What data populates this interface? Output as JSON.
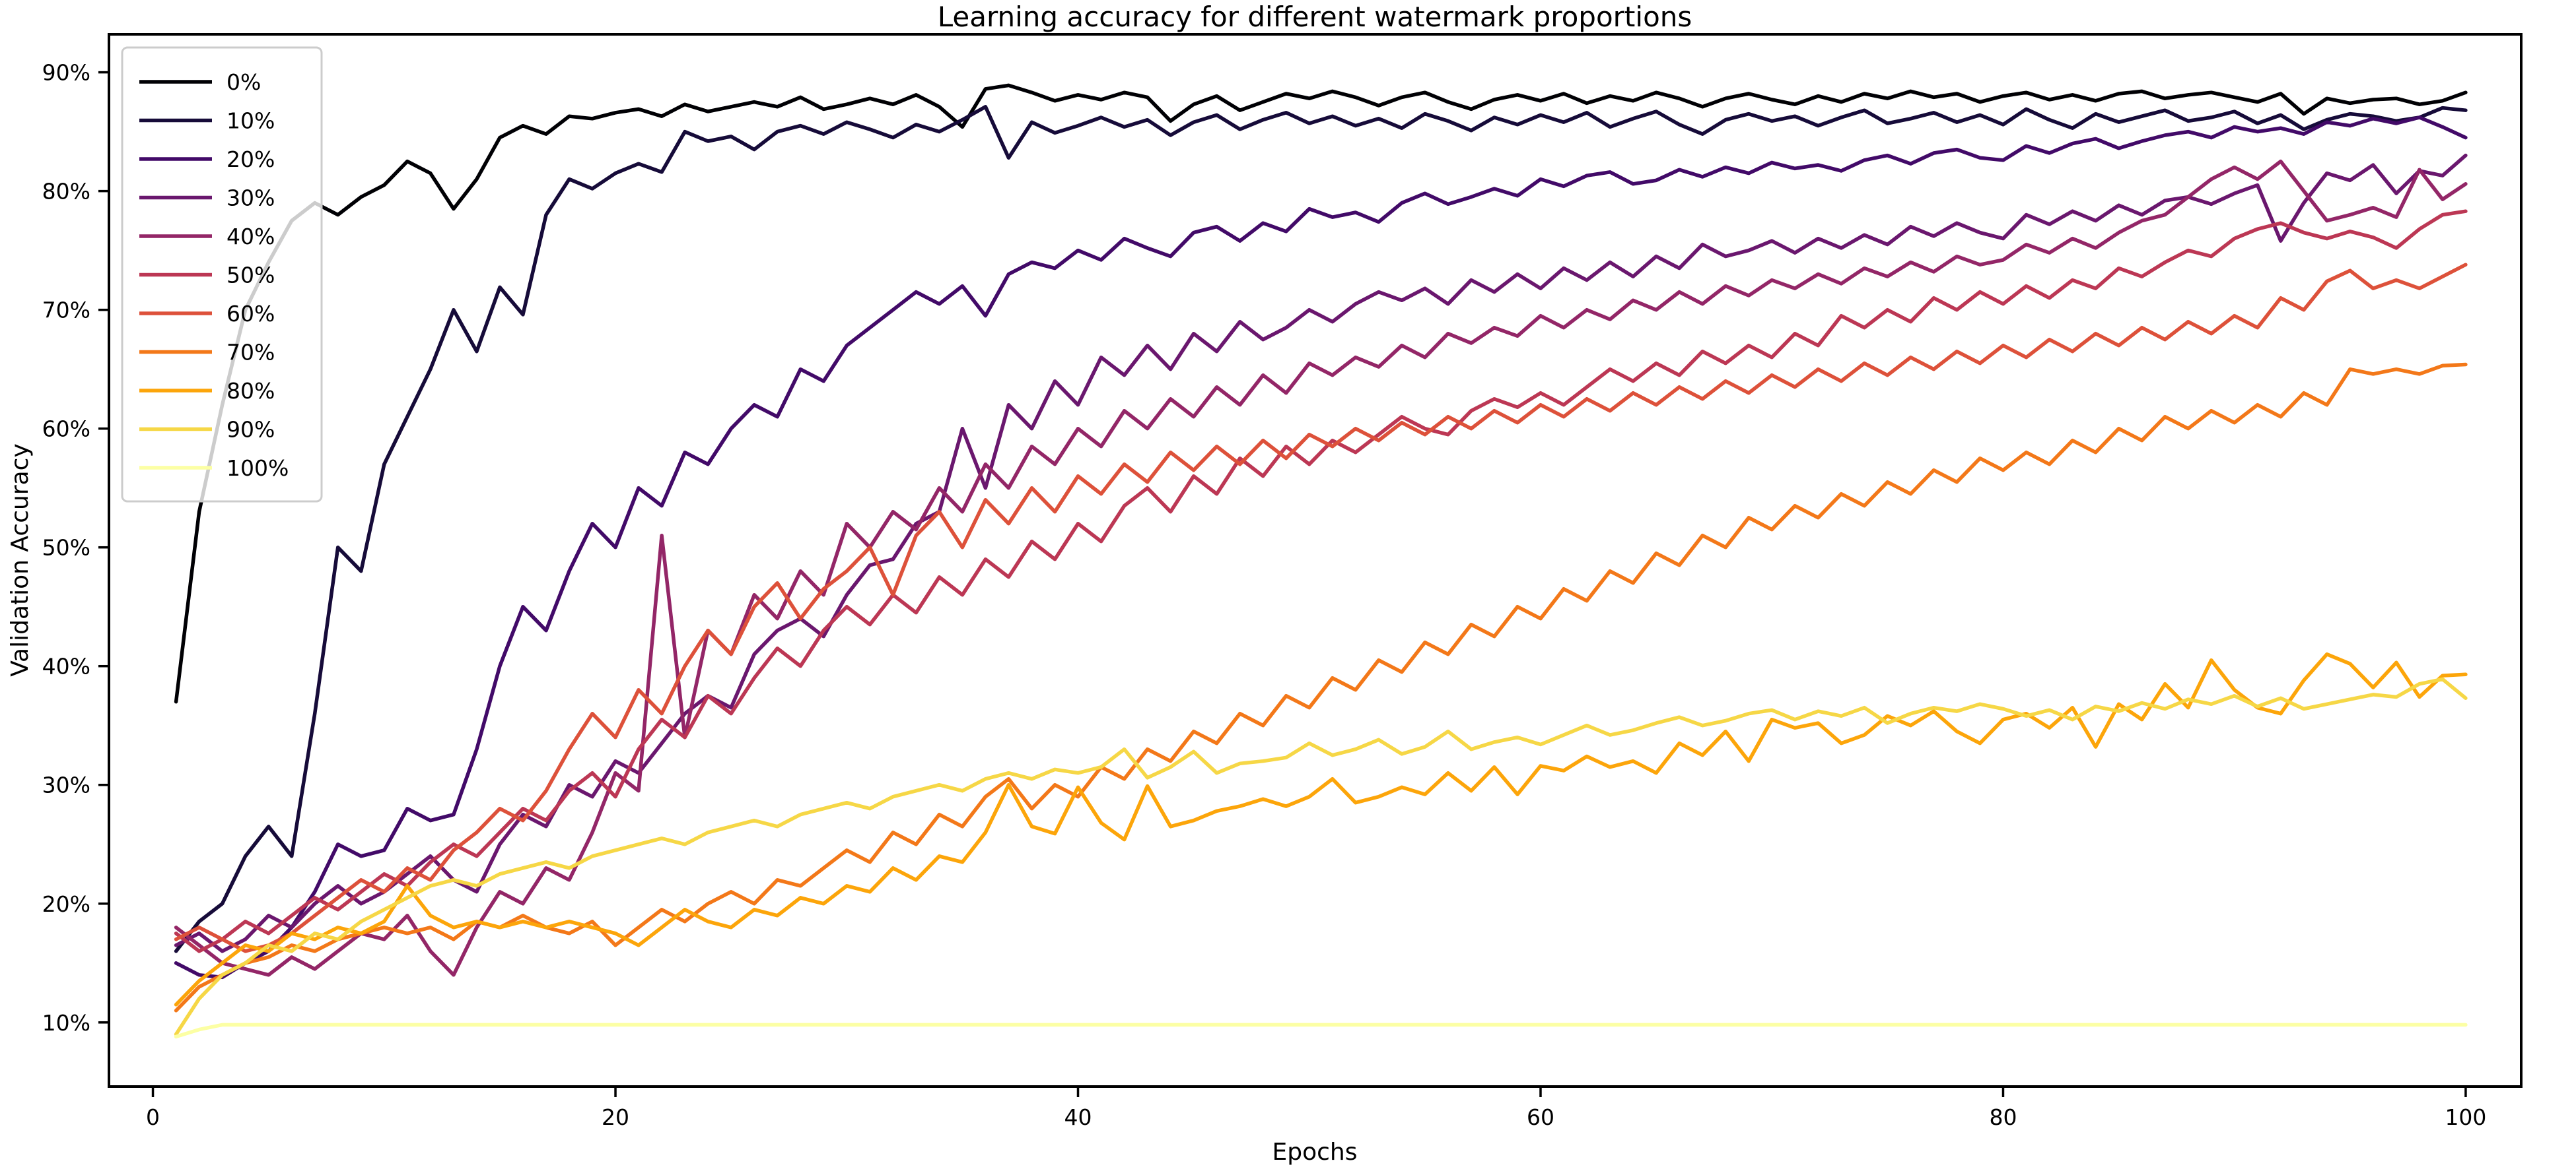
{
  "figure": {
    "title": "Learning accuracy for different watermark proportions",
    "background_color": "#ffffff",
    "axis_color": "#000000",
    "legend_border_color": "#cccccc"
  },
  "chart_data": {
    "type": "line",
    "title": "Learning accuracy for different watermark proportions",
    "xlabel": "Epochs",
    "ylabel": "Validation Accuracy",
    "xlim": [
      -1.9,
      102.4
    ],
    "ylim": [
      4.6,
      93.2
    ],
    "x_ticks": [
      0,
      20,
      40,
      60,
      80,
      100
    ],
    "y_ticks": [
      10,
      20,
      30,
      40,
      50,
      60,
      70,
      80,
      90
    ],
    "y_tick_labels": [
      "10%",
      "20%",
      "30%",
      "40%",
      "50%",
      "60%",
      "70%",
      "80%",
      "90%"
    ],
    "grid": false,
    "legend_position": "upper left",
    "x": [
      1,
      2,
      3,
      4,
      5,
      6,
      7,
      8,
      9,
      10,
      11,
      12,
      13,
      14,
      15,
      16,
      17,
      18,
      19,
      20,
      21,
      22,
      23,
      24,
      25,
      26,
      27,
      28,
      29,
      30,
      31,
      32,
      33,
      34,
      35,
      36,
      37,
      38,
      39,
      40,
      41,
      42,
      43,
      44,
      45,
      46,
      47,
      48,
      49,
      50,
      51,
      52,
      53,
      54,
      55,
      56,
      57,
      58,
      59,
      60,
      61,
      62,
      63,
      64,
      65,
      66,
      67,
      68,
      69,
      70,
      71,
      72,
      73,
      74,
      75,
      76,
      77,
      78,
      79,
      80,
      81,
      82,
      83,
      84,
      85,
      86,
      87,
      88,
      89,
      90,
      91,
      92,
      93,
      94,
      95,
      96,
      97,
      98,
      99,
      100
    ],
    "series": [
      {
        "name": "0%",
        "color": "#000004",
        "values": [
          37,
          53,
          62,
          70,
          74,
          77.5,
          79,
          78,
          79.5,
          80.5,
          82.5,
          81.5,
          78.5,
          81,
          84.5,
          85.5,
          84.8,
          86.3,
          86.1,
          86.6,
          86.9,
          86.3,
          87.3,
          86.7,
          87.1,
          87.5,
          87.1,
          87.9,
          86.9,
          87.3,
          87.8,
          87.3,
          88.1,
          87.1,
          85.4,
          88.6,
          88.9,
          88.3,
          87.6,
          88.1,
          87.7,
          88.3,
          87.9,
          85.9,
          87.3,
          88,
          86.8,
          87.5,
          88.2,
          87.8,
          88.4,
          87.9,
          87.2,
          87.9,
          88.3,
          87.5,
          86.9,
          87.7,
          88.1,
          87.6,
          88.2,
          87.4,
          88,
          87.6,
          88.3,
          87.8,
          87.1,
          87.8,
          88.2,
          87.7,
          87.3,
          88,
          87.5,
          88.2,
          87.8,
          88.4,
          87.9,
          88.2,
          87.5,
          88,
          88.3,
          87.7,
          88.1,
          87.6,
          88.2,
          88.4,
          87.8,
          88.1,
          88.3,
          87.9,
          87.5,
          88.2,
          86.5,
          87.8,
          87.4,
          87.7,
          87.8,
          87.3,
          87.6,
          88.3
        ]
      },
      {
        "name": "10%",
        "color": "#160b39",
        "values": [
          16,
          18.5,
          20,
          24,
          26.5,
          24,
          36,
          50,
          48,
          57,
          61,
          65,
          70,
          66.5,
          71.9,
          69.6,
          78,
          81,
          80.2,
          81.5,
          82.3,
          81.6,
          85,
          84.2,
          84.6,
          83.5,
          85,
          85.5,
          84.8,
          85.8,
          85.2,
          84.5,
          85.6,
          85,
          86,
          87.1,
          82.8,
          85.8,
          84.9,
          85.5,
          86.2,
          85.4,
          86,
          84.7,
          85.8,
          86.4,
          85.2,
          86,
          86.6,
          85.7,
          86.3,
          85.5,
          86.1,
          85.3,
          86.5,
          85.9,
          85.1,
          86.2,
          85.6,
          86.4,
          85.8,
          86.6,
          85.4,
          86.1,
          86.7,
          85.6,
          84.8,
          86,
          86.5,
          85.9,
          86.3,
          85.5,
          86.2,
          86.8,
          85.7,
          86.1,
          86.6,
          85.8,
          86.4,
          85.6,
          86.9,
          86,
          85.3,
          86.5,
          85.8,
          86.3,
          86.8,
          85.9,
          86.2,
          86.7,
          85.7,
          86.4,
          85.2,
          86,
          86.5,
          86.3,
          85.9,
          86.2,
          87,
          86.8
        ]
      },
      {
        "name": "20%",
        "color": "#420a68",
        "values": [
          15,
          14,
          13.8,
          15,
          16,
          18,
          21,
          25,
          24,
          24.5,
          28,
          27,
          27.5,
          33,
          40,
          45,
          43,
          48,
          52,
          50,
          55,
          53.5,
          58,
          57,
          60,
          62,
          61,
          65,
          64,
          67,
          68.5,
          70,
          71.5,
          70.5,
          72,
          69.5,
          73,
          74,
          73.5,
          75,
          74.2,
          76,
          75.2,
          74.5,
          76.5,
          77,
          75.8,
          77.3,
          76.6,
          78.5,
          77.8,
          78.2,
          77.4,
          79,
          79.8,
          78.9,
          79.5,
          80.2,
          79.6,
          81,
          80.4,
          81.3,
          81.6,
          80.6,
          80.9,
          81.8,
          81.2,
          82,
          81.5,
          82.4,
          81.9,
          82.2,
          81.7,
          82.6,
          83,
          82.3,
          83.2,
          83.5,
          82.8,
          82.6,
          83.8,
          83.2,
          84,
          84.4,
          83.6,
          84.2,
          84.7,
          85,
          84.5,
          85.4,
          85,
          85.3,
          84.8,
          85.8,
          85.5,
          86.1,
          85.7,
          86.2,
          85.4,
          84.5
        ]
      },
      {
        "name": "30%",
        "color": "#6a176e",
        "values": [
          16.5,
          17.5,
          16,
          17,
          19,
          18,
          20,
          21.5,
          20,
          21,
          22.5,
          24,
          22,
          21,
          25,
          27.5,
          26.5,
          30,
          29,
          32,
          31,
          33.5,
          36,
          37.5,
          36.5,
          41,
          43,
          44,
          42.5,
          46,
          48.5,
          49,
          52,
          53,
          60,
          55,
          62,
          60,
          64,
          62,
          66,
          64.5,
          67,
          65,
          68,
          66.5,
          69,
          67.5,
          68.5,
          70,
          69,
          70.5,
          71.5,
          70.8,
          71.8,
          70.5,
          72.5,
          71.5,
          73,
          71.8,
          73.5,
          72.5,
          74,
          72.8,
          74.5,
          73.5,
          75.5,
          74.5,
          75,
          75.8,
          74.8,
          76,
          75.2,
          76.3,
          75.5,
          77,
          76.2,
          77.3,
          76.5,
          76,
          78,
          77.2,
          78.3,
          77.5,
          78.8,
          78,
          79.2,
          79.5,
          78.9,
          79.8,
          80.5,
          75.8,
          79,
          81.5,
          80.9,
          82.2,
          79.8,
          81.7,
          81.3,
          83
        ]
      },
      {
        "name": "40%",
        "color": "#932667",
        "values": [
          18,
          16.5,
          15,
          14.5,
          14,
          15.5,
          14.5,
          16,
          17.5,
          17,
          19,
          16,
          14,
          18,
          21,
          20,
          23,
          22,
          26,
          31,
          29.5,
          51,
          34,
          43,
          41,
          46,
          44,
          48,
          46,
          52,
          50,
          53,
          51.5,
          55,
          53,
          57,
          55,
          58.5,
          57,
          60,
          58.5,
          61.5,
          60,
          62.5,
          61,
          63.5,
          62,
          64.5,
          63,
          65.5,
          64.5,
          66,
          65.2,
          67,
          66,
          68,
          67.2,
          68.5,
          67.8,
          69.5,
          68.5,
          70,
          69.2,
          70.8,
          70,
          71.5,
          70.5,
          72,
          71.2,
          72.5,
          71.8,
          73,
          72.2,
          73.5,
          72.8,
          74,
          73.2,
          74.5,
          73.8,
          74.2,
          75.5,
          74.8,
          76,
          75.2,
          76.5,
          77.5,
          78,
          79.5,
          81,
          82,
          81,
          82.5,
          80,
          77.5,
          78,
          78.6,
          77.8,
          81.8,
          79.3,
          80.6
        ]
      },
      {
        "name": "50%",
        "color": "#bc3754",
        "values": [
          17.5,
          16,
          17,
          18.5,
          17.5,
          19,
          20.5,
          19.5,
          21,
          22.5,
          21.5,
          23.5,
          25,
          24,
          26,
          28,
          27,
          29.5,
          31,
          29,
          33,
          35.5,
          34,
          37.5,
          36,
          39,
          41.5,
          40,
          43,
          45,
          43.5,
          46,
          44.5,
          47.5,
          46,
          49,
          47.5,
          50.5,
          49,
          52,
          50.5,
          53.5,
          55,
          53,
          56,
          54.5,
          57.5,
          56,
          58.5,
          57,
          59,
          58,
          59.5,
          61,
          60,
          59.5,
          61.5,
          62.5,
          61.8,
          63,
          62,
          63.5,
          65,
          64,
          65.5,
          64.5,
          66.5,
          65.5,
          67,
          66,
          68,
          67,
          69.5,
          68.5,
          70,
          69,
          71,
          70,
          71.5,
          70.5,
          72,
          71,
          72.5,
          71.8,
          73.5,
          72.8,
          74,
          75,
          74.5,
          76,
          76.8,
          77.3,
          76.5,
          76,
          76.6,
          76.1,
          75.2,
          76.8,
          78,
          78.3
        ]
      },
      {
        "name": "60%",
        "color": "#dd513a",
        "values": [
          17,
          18,
          17,
          16,
          16.5,
          17.5,
          19,
          20.5,
          22,
          21,
          23,
          22,
          24.5,
          26,
          28,
          27,
          29.5,
          33,
          36,
          34,
          38,
          36,
          40,
          43,
          41,
          45,
          47,
          44,
          46.5,
          48,
          50,
          46,
          51,
          53,
          50,
          54,
          52,
          55,
          53,
          56,
          54.5,
          57,
          55.5,
          58,
          56.5,
          58.5,
          57,
          59,
          57.5,
          59.5,
          58.5,
          60,
          59,
          60.5,
          59.5,
          61,
          60,
          61.5,
          60.5,
          62,
          61,
          62.5,
          61.5,
          63,
          62,
          63.5,
          62.5,
          64,
          63,
          64.5,
          63.5,
          65,
          64,
          65.5,
          64.5,
          66,
          65,
          66.5,
          65.5,
          67,
          66,
          67.5,
          66.5,
          68,
          67,
          68.5,
          67.5,
          69,
          68,
          69.5,
          68.5,
          71,
          70,
          72.4,
          73.3,
          71.8,
          72.5,
          71.8,
          72.8,
          73.8
        ]
      },
      {
        "name": "70%",
        "color": "#f37819",
        "values": [
          11,
          13,
          14,
          15,
          15.5,
          16.5,
          16,
          17,
          17.5,
          18,
          17.5,
          18,
          17,
          18.5,
          18,
          19,
          18,
          17.5,
          18.5,
          16.5,
          18,
          19.5,
          18.5,
          20,
          21,
          20,
          22,
          21.5,
          23,
          24.5,
          23.5,
          26,
          25,
          27.5,
          26.5,
          29,
          30.5,
          28,
          30,
          29,
          31.5,
          30.5,
          33,
          32,
          34.5,
          33.5,
          36,
          35,
          37.5,
          36.5,
          39,
          38,
          40.5,
          39.5,
          42,
          41,
          43.5,
          42.5,
          45,
          44,
          46.5,
          45.5,
          48,
          47,
          49.5,
          48.5,
          51,
          50,
          52.5,
          51.5,
          53.5,
          52.5,
          54.5,
          53.5,
          55.5,
          54.5,
          56.5,
          55.5,
          57.5,
          56.5,
          58,
          57,
          59,
          58,
          60,
          59,
          61,
          60,
          61.5,
          60.5,
          62,
          61,
          63,
          62,
          65,
          64.6,
          65,
          64.6,
          65.3,
          65.4
        ]
      },
      {
        "name": "80%",
        "color": "#fca50a",
        "values": [
          11.5,
          13.5,
          15,
          16.5,
          16,
          17.5,
          17,
          18,
          17.5,
          18.5,
          21.5,
          19,
          18,
          18.5,
          18,
          18.5,
          18,
          18.5,
          18,
          17.5,
          16.5,
          18,
          19.5,
          18.5,
          18,
          19.5,
          19,
          20.5,
          20,
          21.5,
          21,
          23,
          22,
          24,
          23.5,
          26,
          30,
          26.5,
          25.9,
          29.8,
          26.8,
          25.4,
          29.9,
          26.5,
          27,
          27.8,
          28.2,
          28.8,
          28.2,
          29,
          30.5,
          28.5,
          29,
          29.8,
          29.2,
          31,
          29.5,
          31.5,
          29.2,
          31.6,
          31.2,
          32.4,
          31.5,
          32,
          31,
          33.5,
          32.5,
          34.5,
          32,
          35.5,
          34.8,
          35.2,
          33.5,
          34.2,
          35.8,
          35,
          36.2,
          34.5,
          33.5,
          35.5,
          36,
          34.8,
          36.5,
          33.2,
          36.8,
          35.5,
          38.5,
          36.5,
          40.5,
          38,
          36.5,
          36,
          38.8,
          41,
          40.2,
          38.2,
          40.3,
          37.4,
          39.2,
          39.3
        ]
      },
      {
        "name": "90%",
        "color": "#f6d746",
        "values": [
          9,
          12,
          14,
          15,
          16.5,
          16,
          17.5,
          17,
          18.5,
          19.5,
          20.5,
          21.5,
          22,
          21.5,
          22.5,
          23,
          23.5,
          23,
          24,
          24.5,
          25,
          25.5,
          25,
          26,
          26.5,
          27,
          26.5,
          27.5,
          28,
          28.5,
          28,
          29,
          29.5,
          30,
          29.5,
          30.5,
          31,
          30.5,
          31.3,
          31,
          31.5,
          33,
          30.6,
          31.5,
          32.8,
          31,
          31.8,
          32,
          32.3,
          33.5,
          32.5,
          33,
          33.8,
          32.6,
          33.2,
          34.5,
          33,
          33.6,
          34,
          33.4,
          34.2,
          35,
          34.2,
          34.6,
          35.2,
          35.7,
          35,
          35.4,
          36,
          36.3,
          35.5,
          36.2,
          35.8,
          36.5,
          35.2,
          36,
          36.5,
          36.2,
          36.8,
          36.4,
          35.8,
          36.3,
          35.5,
          36.6,
          36.2,
          36.9,
          36.4,
          37.2,
          36.8,
          37.5,
          36.6,
          37.3,
          36.4,
          36.8,
          37.2,
          37.6,
          37.4,
          38.5,
          38.9,
          37.3
        ]
      },
      {
        "name": "100%",
        "color": "#fcffa4",
        "values": [
          8.8,
          9.4,
          9.8,
          9.8,
          9.8,
          9.8,
          9.8,
          9.8,
          9.8,
          9.8,
          9.8,
          9.8,
          9.8,
          9.8,
          9.8,
          9.8,
          9.8,
          9.8,
          9.8,
          9.8,
          9.8,
          9.8,
          9.8,
          9.8,
          9.8,
          9.8,
          9.8,
          9.8,
          9.8,
          9.8,
          9.8,
          9.8,
          9.8,
          9.8,
          9.8,
          9.8,
          9.8,
          9.8,
          9.8,
          9.8,
          9.8,
          9.8,
          9.8,
          9.8,
          9.8,
          9.8,
          9.8,
          9.8,
          9.8,
          9.8,
          9.8,
          9.8,
          9.8,
          9.8,
          9.8,
          9.8,
          9.8,
          9.8,
          9.8,
          9.8,
          9.8,
          9.8,
          9.8,
          9.8,
          9.8,
          9.8,
          9.8,
          9.8,
          9.8,
          9.8,
          9.8,
          9.8,
          9.8,
          9.8,
          9.8,
          9.8,
          9.8,
          9.8,
          9.8,
          9.8,
          9.8,
          9.8,
          9.8,
          9.8,
          9.8,
          9.8,
          9.8,
          9.8,
          9.8,
          9.8,
          9.8,
          9.8,
          9.8,
          9.8,
          9.8,
          9.8,
          9.8,
          9.8,
          9.8,
          9.8
        ]
      }
    ]
  }
}
